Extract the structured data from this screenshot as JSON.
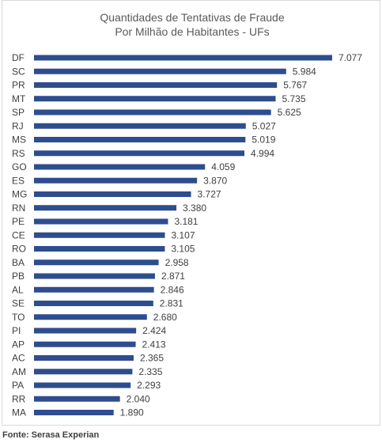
{
  "source": "Fonte: Serasa Experian",
  "chart_data": {
    "type": "bar",
    "orientation": "horizontal",
    "title": [
      "Quantidades de Tentativas de Fraude",
      "Por Milhão de Habitantes - UFs"
    ],
    "categories": [
      "DF",
      "SC",
      "PR",
      "MT",
      "SP",
      "RJ",
      "MS",
      "RS",
      "GO",
      "ES",
      "MG",
      "RN",
      "PE",
      "CE",
      "RO",
      "BA",
      "PB",
      "AL",
      "SE",
      "TO",
      "PI",
      "AP",
      "AC",
      "AM",
      "PA",
      "RR",
      "MA"
    ],
    "values": [
      7077,
      5984,
      5767,
      5735,
      5625,
      5027,
      5019,
      4994,
      4059,
      3870,
      3727,
      3380,
      3181,
      3107,
      3105,
      2958,
      2871,
      2846,
      2831,
      2680,
      2424,
      2413,
      2365,
      2335,
      2293,
      2040,
      1890
    ],
    "value_labels": [
      "7.077",
      "5.984",
      "5.767",
      "5.735",
      "5.625",
      "5.027",
      "5.019",
      "4.994",
      "4.059",
      "3.870",
      "3.727",
      "3.380",
      "3.181",
      "3.107",
      "3.105",
      "2.958",
      "2.871",
      "2.846",
      "2.831",
      "2.680",
      "2.424",
      "2.413",
      "2.365",
      "2.335",
      "2.293",
      "2.040",
      "1.890"
    ],
    "xlim": [
      0,
      7077
    ],
    "grid": false,
    "legend": "none",
    "bar_color": "#2e4d8f"
  }
}
